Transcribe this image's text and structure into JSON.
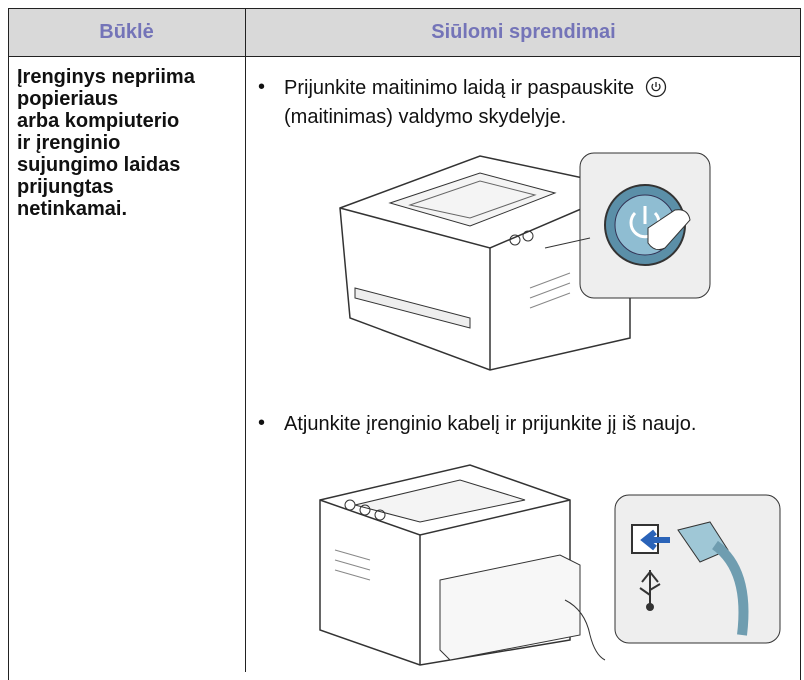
{
  "table": {
    "header": [
      "Būklė",
      "Siūlomi sprendimai"
    ],
    "rows": [
      {
        "condition_lines": [
          "Įrenginys nepriima",
          "popieriaus",
          "arba kompiuterio",
          "ir įrenginio",
          "sujungimo laidas",
          "prijungtas",
          "netinkamai."
        ],
        "solutions": [
          {
            "text_before_icon": "Prijunkite maitinimo laidą ir paspauskite",
            "text_after_icon": "(maitinimas) valdymo skydelyje."
          },
          {
            "text": "Atjunkite įrenginio kabelį ir prijunkite jį iš naujo."
          }
        ]
      }
    ]
  }
}
